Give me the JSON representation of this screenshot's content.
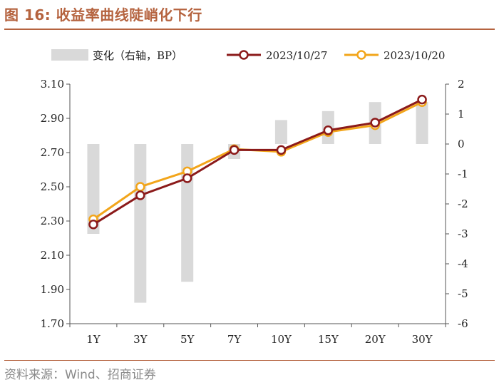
{
  "header": {
    "title": "图 16: 收益率曲线陡峭化下行"
  },
  "footer": {
    "source": "资料来源：Wind、招商证券"
  },
  "chart_data": {
    "type": "bar+line",
    "categories": [
      "1Y",
      "3Y",
      "5Y",
      "7Y",
      "10Y",
      "15Y",
      "20Y",
      "30Y"
    ],
    "legend": [
      {
        "label": "变化（右轴，BP）",
        "kind": "bar",
        "color": "#d9d9d9"
      },
      {
        "label": "2023/10/27",
        "kind": "line",
        "color": "#8b1a1a"
      },
      {
        "label": "2023/10/20",
        "kind": "line",
        "color": "#f2a51a"
      }
    ],
    "bars": {
      "name": "变化（右轴，BP）",
      "axis": "right",
      "values": [
        -3,
        -5.3,
        -4.6,
        -0.5,
        0.8,
        1.1,
        1.4,
        1.4
      ]
    },
    "series": [
      {
        "name": "2023/10/27",
        "axis": "left",
        "color": "#8b1a1a",
        "values": [
          2.28,
          2.45,
          2.55,
          2.715,
          2.715,
          2.83,
          2.875,
          3.01
        ]
      },
      {
        "name": "2023/10/20",
        "axis": "left",
        "color": "#f2a51a",
        "values": [
          2.31,
          2.5,
          2.59,
          2.72,
          2.705,
          2.82,
          2.86,
          2.995
        ]
      }
    ],
    "y_left": {
      "range": [
        1.7,
        3.1
      ],
      "ticks": [
        "3.10",
        "2.90",
        "2.70",
        "2.50",
        "2.30",
        "2.10",
        "1.90",
        "1.70"
      ]
    },
    "y_right": {
      "range": [
        -6,
        2
      ],
      "ticks": [
        "2",
        "1",
        "0",
        "-1",
        "-2",
        "-3",
        "-4",
        "-5",
        "-6"
      ]
    },
    "grid": false,
    "legend_position": "top"
  }
}
